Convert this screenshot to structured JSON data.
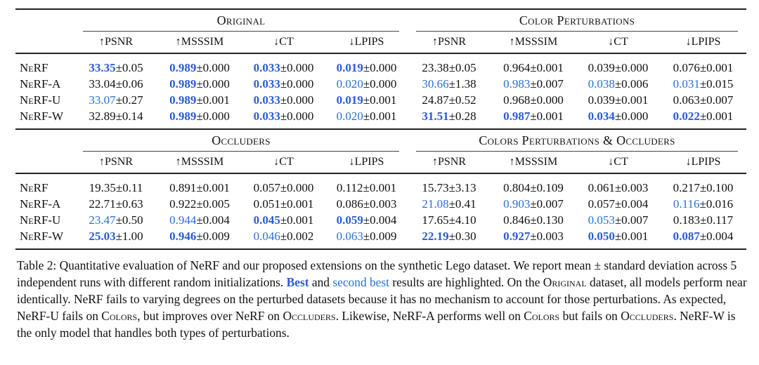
{
  "groups_top": [
    "Original",
    "Color Perturbations"
  ],
  "groups_bottom": [
    "Occluders",
    "Colors Perturbations & Occluders"
  ],
  "metrics": [
    "↑PSNR",
    "↑MSSSIM",
    "↓CT",
    "↓LPIPS",
    "↑PSNR",
    "↑MSSSIM",
    "↓CT",
    "↓LPIPS"
  ],
  "metrics_bottom": [
    "↑PSNR",
    "↑MSSSIM",
    "↓CT",
    "↓LPIPS",
    "↑PSNR",
    "↑MSSSIM",
    "↓CT",
    "↓LPIPS"
  ],
  "rows_top": [
    {
      "name": "NeRF",
      "cells": [
        {
          "v": "33.35",
          "e": "±0.05",
          "h": "best"
        },
        {
          "v": "0.989",
          "e": "±0.000",
          "h": "best"
        },
        {
          "v": "0.033",
          "e": "±0.000",
          "h": "best"
        },
        {
          "v": "0.019",
          "e": "±0.000",
          "h": "best"
        },
        {
          "v": "23.38",
          "e": "±0.05",
          "h": ""
        },
        {
          "v": "0.964",
          "e": "±0.001",
          "h": ""
        },
        {
          "v": "0.039",
          "e": "±0.000",
          "h": ""
        },
        {
          "v": "0.076",
          "e": "±0.001",
          "h": ""
        }
      ]
    },
    {
      "name": "NeRF-A",
      "cells": [
        {
          "v": "33.04",
          "e": "±0.06",
          "h": ""
        },
        {
          "v": "0.989",
          "e": "±0.000",
          "h": "best"
        },
        {
          "v": "0.033",
          "e": "±0.000",
          "h": "best"
        },
        {
          "v": "0.020",
          "e": "±0.000",
          "h": "second"
        },
        {
          "v": "30.66",
          "e": "±1.38",
          "h": "second"
        },
        {
          "v": "0.983",
          "e": "±0.007",
          "h": "second"
        },
        {
          "v": "0.038",
          "e": "±0.006",
          "h": "second"
        },
        {
          "v": "0.031",
          "e": "±0.015",
          "h": "second"
        }
      ]
    },
    {
      "name": "NeRF-U",
      "cells": [
        {
          "v": "33.07",
          "e": "±0.27",
          "h": "second"
        },
        {
          "v": "0.989",
          "e": "±0.001",
          "h": "best"
        },
        {
          "v": "0.033",
          "e": "±0.000",
          "h": "best"
        },
        {
          "v": "0.019",
          "e": "±0.001",
          "h": "best"
        },
        {
          "v": "24.87",
          "e": "±0.52",
          "h": ""
        },
        {
          "v": "0.968",
          "e": "±0.000",
          "h": ""
        },
        {
          "v": "0.039",
          "e": "±0.001",
          "h": ""
        },
        {
          "v": "0.063",
          "e": "±0.007",
          "h": ""
        }
      ]
    },
    {
      "name": "NeRF-W",
      "cells": [
        {
          "v": "32.89",
          "e": "±0.14",
          "h": ""
        },
        {
          "v": "0.989",
          "e": "±0.000",
          "h": "best"
        },
        {
          "v": "0.033",
          "e": "±0.000",
          "h": "best"
        },
        {
          "v": "0.020",
          "e": "±0.001",
          "h": "second"
        },
        {
          "v": "31.51",
          "e": "±0.28",
          "h": "best"
        },
        {
          "v": "0.987",
          "e": "±0.001",
          "h": "best"
        },
        {
          "v": "0.034",
          "e": "±0.000",
          "h": "best"
        },
        {
          "v": "0.022",
          "e": "±0.001",
          "h": "best"
        }
      ]
    }
  ],
  "rows_bottom": [
    {
      "name": "NeRF",
      "cells": [
        {
          "v": "19.35",
          "e": "±0.11",
          "h": ""
        },
        {
          "v": "0.891",
          "e": "±0.001",
          "h": ""
        },
        {
          "v": "0.057",
          "e": "±0.000",
          "h": ""
        },
        {
          "v": "0.112",
          "e": "±0.001",
          "h": ""
        },
        {
          "v": "15.73",
          "e": "±3.13",
          "h": ""
        },
        {
          "v": "0.804",
          "e": "±0.109",
          "h": ""
        },
        {
          "v": "0.061",
          "e": "±0.003",
          "h": ""
        },
        {
          "v": "0.217",
          "e": "±0.100",
          "h": ""
        }
      ]
    },
    {
      "name": "NeRF-A",
      "cells": [
        {
          "v": "22.71",
          "e": "±0.63",
          "h": ""
        },
        {
          "v": "0.922",
          "e": "±0.005",
          "h": ""
        },
        {
          "v": "0.051",
          "e": "±0.001",
          "h": ""
        },
        {
          "v": "0.086",
          "e": "±0.003",
          "h": ""
        },
        {
          "v": "21.08",
          "e": "±0.41",
          "h": "second"
        },
        {
          "v": "0.903",
          "e": "±0.007",
          "h": "second"
        },
        {
          "v": "0.057",
          "e": "±0.004",
          "h": ""
        },
        {
          "v": "0.116",
          "e": "±0.016",
          "h": "second"
        }
      ]
    },
    {
      "name": "NeRF-U",
      "cells": [
        {
          "v": "23.47",
          "e": "±0.50",
          "h": "second"
        },
        {
          "v": "0.944",
          "e": "±0.004",
          "h": "second"
        },
        {
          "v": "0.045",
          "e": "±0.001",
          "h": "best"
        },
        {
          "v": "0.059",
          "e": "±0.004",
          "h": "best"
        },
        {
          "v": "17.65",
          "e": "±4.10",
          "h": ""
        },
        {
          "v": "0.846",
          "e": "±0.130",
          "h": ""
        },
        {
          "v": "0.053",
          "e": "±0.007",
          "h": "second"
        },
        {
          "v": "0.183",
          "e": "±0.117",
          "h": ""
        }
      ]
    },
    {
      "name": "NeRF-W",
      "cells": [
        {
          "v": "25.03",
          "e": "±1.00",
          "h": "best"
        },
        {
          "v": "0.946",
          "e": "±0.009",
          "h": "best"
        },
        {
          "v": "0.046",
          "e": "±0.002",
          "h": "second"
        },
        {
          "v": "0.063",
          "e": "±0.009",
          "h": "second"
        },
        {
          "v": "22.19",
          "e": "±0.30",
          "h": "best"
        },
        {
          "v": "0.927",
          "e": "±0.003",
          "h": "best"
        },
        {
          "v": "0.050",
          "e": "±0.001",
          "h": "best"
        },
        {
          "v": "0.087",
          "e": "±0.004",
          "h": "best"
        }
      ]
    }
  ],
  "caption": {
    "p1": "Table 2: Quantitative evaluation of NeRF and our proposed extensions on the synthetic Lego dataset. We report mean ± standard deviation across 5 independent runs with different random initializations. ",
    "best": "Best",
    "and": " and ",
    "second": "second best",
    "p2": " results are highlighted. On the ",
    "sc_original": "Original",
    "p3": " dataset, all models perform near identically. NeRF fails to varying degrees on the perturbed datasets because it has no mechanism to account for those perturbations. As expected, NeRF-U fails on ",
    "sc_colors": "Colors",
    "p4": ", but improves over NeRF on ",
    "sc_occluders": "Occluders",
    "p5": ". Likewise, NeRF-A performs well on ",
    "sc_colors2": "Colors",
    "p6": " but fails on ",
    "sc_occluders2": "Occluders",
    "p7": ". NeRF-W is the only model that handles both types of perturbations."
  },
  "colors": {
    "best": "#2a5bd7",
    "second": "#2a6fd6"
  }
}
